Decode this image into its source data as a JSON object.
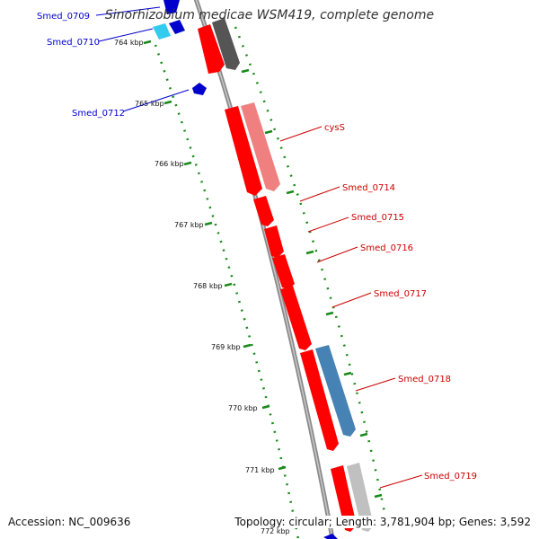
{
  "title": "Sinorhizobium medicae WSM419, complete genome",
  "accession": "Accession: NC_009636",
  "summary": "Topology: circular; Length: 3,781,904 bp; Genes: 3,592",
  "colors": {
    "backbone": "#808080",
    "forward_gene": "#ff0000",
    "reverse_gene": "#0000cc",
    "tick": "#1a8a1a",
    "label_forward": "#cc0000",
    "label_reverse": "#0000cc"
  },
  "ruler": {
    "unit": "kbp",
    "ticks": [
      "764 kbp",
      "765 kbp",
      "766 kbp",
      "767 kbp",
      "768 kbp",
      "769 kbp",
      "770 kbp",
      "771 kbp",
      "772 kbp"
    ]
  },
  "gene_labels": [
    {
      "name": "Smed_0709",
      "strand": "reverse"
    },
    {
      "name": "Smed_0710",
      "strand": "reverse"
    },
    {
      "name": "Smed_0712",
      "strand": "reverse"
    },
    {
      "name": "cysS",
      "strand": "forward"
    },
    {
      "name": "Smed_0714",
      "strand": "forward"
    },
    {
      "name": "Smed_0715",
      "strand": "forward"
    },
    {
      "name": "Smed_0716",
      "strand": "forward"
    },
    {
      "name": "Smed_0717",
      "strand": "forward"
    },
    {
      "name": "Smed_0718",
      "strand": "forward"
    },
    {
      "name": "Smed_0719",
      "strand": "forward"
    }
  ]
}
